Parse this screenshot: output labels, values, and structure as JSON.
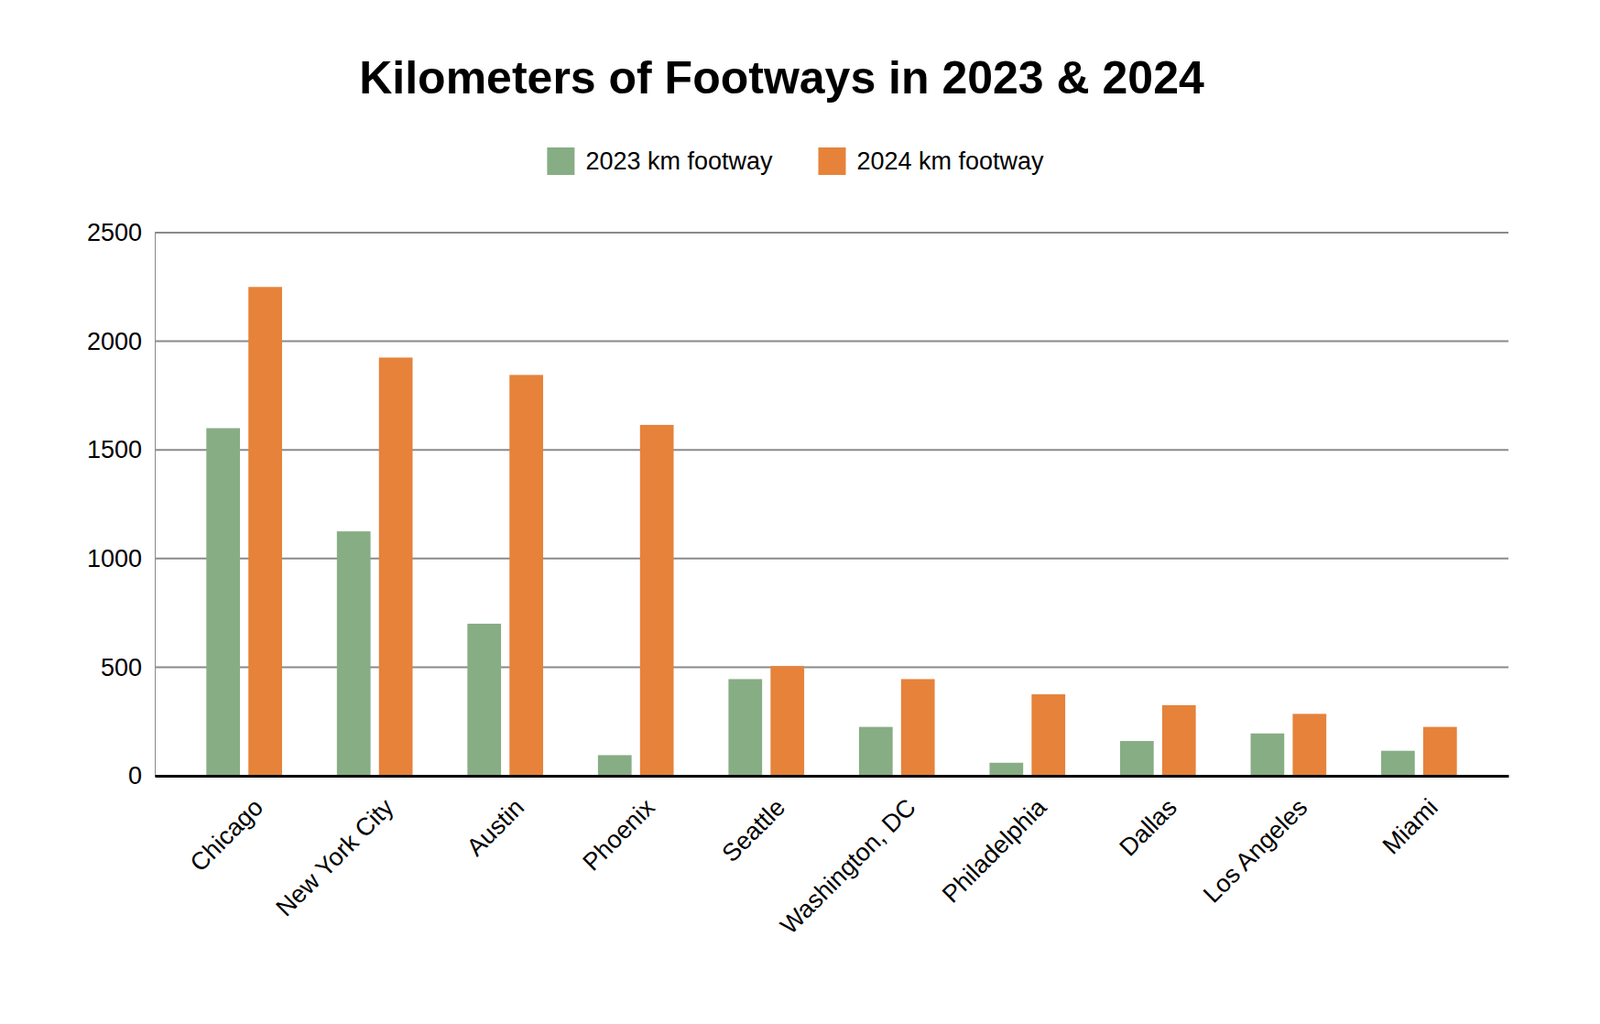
{
  "chart_data": {
    "type": "bar",
    "title": "Kilometers of Footways in 2023 & 2024",
    "categories": [
      "Chicago",
      "New York City",
      "Austin",
      "Phoenix",
      "Seattle",
      "Washington, DC",
      "Philadelphia",
      "Dallas",
      "Los Angeles",
      "Miami"
    ],
    "series": [
      {
        "name": "2023 km footway",
        "color": "#87ad84",
        "values": [
          1600,
          1125,
          700,
          95,
          445,
          225,
          60,
          160,
          195,
          115
        ]
      },
      {
        "name": "2024 km footway",
        "color": "#e6823a",
        "values": [
          2250,
          1925,
          1845,
          1615,
          505,
          445,
          375,
          325,
          285,
          225
        ]
      }
    ],
    "ylim": [
      0,
      2500
    ],
    "yticks": [
      0,
      500,
      1000,
      1500,
      2000,
      2500
    ],
    "grid": true,
    "legend": "top"
  }
}
